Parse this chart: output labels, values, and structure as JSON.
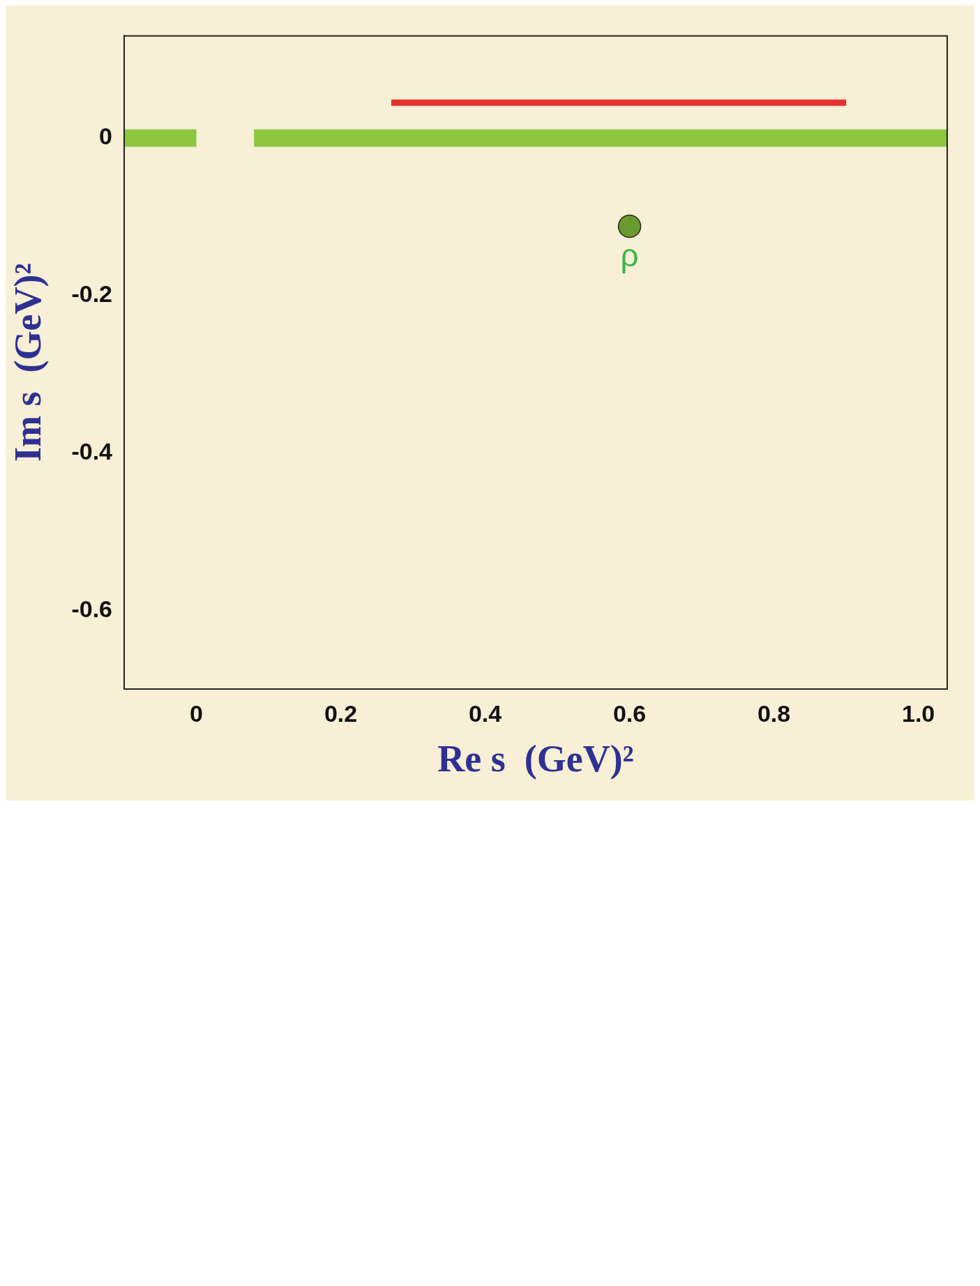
{
  "chart_data": {
    "type": "line",
    "xlabel": "Re s  (GeV)²",
    "ylabel": "Im s  (GeV)²",
    "xlim": [
      -0.1,
      1.04
    ],
    "ylim": [
      -0.7,
      0.13
    ],
    "xticks": [
      0,
      0.2,
      0.4,
      0.6,
      0.8,
      {
        "value": 1,
        "label": "1.0"
      }
    ],
    "yticks": [
      -0.6,
      -0.4,
      -0.2,
      0
    ],
    "series": [
      {
        "color": "#8dc63f",
        "x": [
          -0.1,
          0
        ],
        "values": [
          0,
          0
        ]
      },
      {
        "color": "#8dc63f",
        "x": [
          0.08,
          1.04
        ],
        "values": [
          0,
          0
        ]
      },
      {
        "color": "#e8312f",
        "x": [
          0.27,
          0.9
        ],
        "values": [
          0.045,
          0.045
        ]
      },
      {
        "type": "scatter",
        "color": "#6b9a2e",
        "x": [
          0.6
        ],
        "values": [
          -0.112
        ],
        "marker": "circle"
      }
    ],
    "annotations": [
      {
        "text": "ρ",
        "x": 0.6,
        "y": -0.112
      }
    ]
  }
}
